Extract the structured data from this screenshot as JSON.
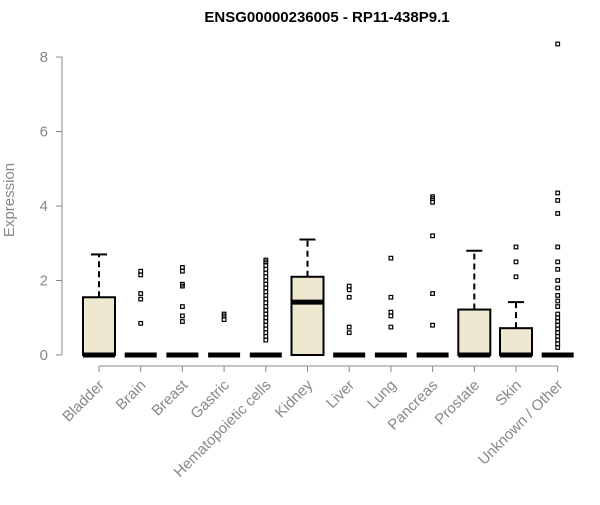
{
  "chart_data": {
    "type": "boxplot",
    "title": "ENSG00000236005 - RP11-438P9.1",
    "xlabel": "",
    "ylabel": "Expression",
    "ylim": [
      0,
      8.5
    ],
    "yticks": [
      0,
      2,
      4,
      6,
      8
    ],
    "box_fill": "#efe8d0",
    "categories": [
      "Bladder",
      "Brain",
      "Breast",
      "Gastric",
      "Hematopoietic cells",
      "Kidney",
      "Liver",
      "Lung",
      "Pancreas",
      "Prostate",
      "Skin",
      "Unknown / Other"
    ],
    "boxes": [
      {
        "name": "Bladder",
        "q1": 0,
        "median": 0,
        "q3": 1.55,
        "whisker_low": 0,
        "whisker_high": 2.7,
        "outliers": []
      },
      {
        "name": "Brain",
        "q1": 0,
        "median": 0,
        "q3": 0,
        "whisker_low": 0,
        "whisker_high": 0,
        "outliers": [
          0.85,
          1.5,
          1.65,
          2.15,
          2.25
        ]
      },
      {
        "name": "Breast",
        "q1": 0,
        "median": 0,
        "q3": 0,
        "whisker_low": 0,
        "whisker_high": 0,
        "outliers": [
          0.9,
          1.05,
          1.3,
          1.85,
          1.9,
          2.25,
          2.35
        ]
      },
      {
        "name": "Gastric",
        "q1": 0,
        "median": 0,
        "q3": 0,
        "whisker_low": 0,
        "whisker_high": 0,
        "outliers": [
          0.95,
          1.05,
          1.1
        ]
      },
      {
        "name": "Hematopoietic cells",
        "q1": 0,
        "median": 0,
        "q3": 0,
        "whisker_low": 0,
        "whisker_high": 0,
        "outliers": [
          0.4,
          0.5,
          0.6,
          0.7,
          0.8,
          0.9,
          1.0,
          1.1,
          1.2,
          1.3,
          1.4,
          1.5,
          1.6,
          1.7,
          1.8,
          1.9,
          2.0,
          2.1,
          2.2,
          2.3,
          2.4,
          2.5,
          2.55
        ]
      },
      {
        "name": "Kidney",
        "q1": 0,
        "median": 1.42,
        "q3": 2.1,
        "whisker_low": 0,
        "whisker_high": 3.1,
        "outliers": []
      },
      {
        "name": "Liver",
        "q1": 0,
        "median": 0,
        "q3": 0,
        "whisker_low": 0,
        "whisker_high": 0,
        "outliers": [
          0.6,
          0.75,
          1.55,
          1.75,
          1.85
        ]
      },
      {
        "name": "Lung",
        "q1": 0,
        "median": 0,
        "q3": 0,
        "whisker_low": 0,
        "whisker_high": 0,
        "outliers": [
          0.75,
          1.05,
          1.15,
          1.55,
          2.6
        ]
      },
      {
        "name": "Pancreas",
        "q1": 0,
        "median": 0,
        "q3": 0,
        "whisker_low": 0,
        "whisker_high": 0,
        "outliers": [
          0.8,
          1.65,
          3.2,
          4.1,
          4.2,
          4.25
        ]
      },
      {
        "name": "Prostate",
        "q1": 0,
        "median": 0,
        "q3": 1.22,
        "whisker_low": 0,
        "whisker_high": 2.8,
        "outliers": []
      },
      {
        "name": "Skin",
        "q1": 0,
        "median": 0,
        "q3": 0.72,
        "whisker_low": 0,
        "whisker_high": 1.42,
        "outliers": [
          2.1,
          2.5,
          2.9
        ]
      },
      {
        "name": "Unknown / Other",
        "q1": 0,
        "median": 0,
        "q3": 0,
        "whisker_low": 0,
        "whisker_high": 0,
        "outliers": [
          0.2,
          0.3,
          0.4,
          0.5,
          0.6,
          0.7,
          0.8,
          0.9,
          1.0,
          1.1,
          1.3,
          1.45,
          1.6,
          1.8,
          2.0,
          2.3,
          2.5,
          2.9,
          3.8,
          4.15,
          4.35,
          8.35
        ]
      }
    ]
  }
}
